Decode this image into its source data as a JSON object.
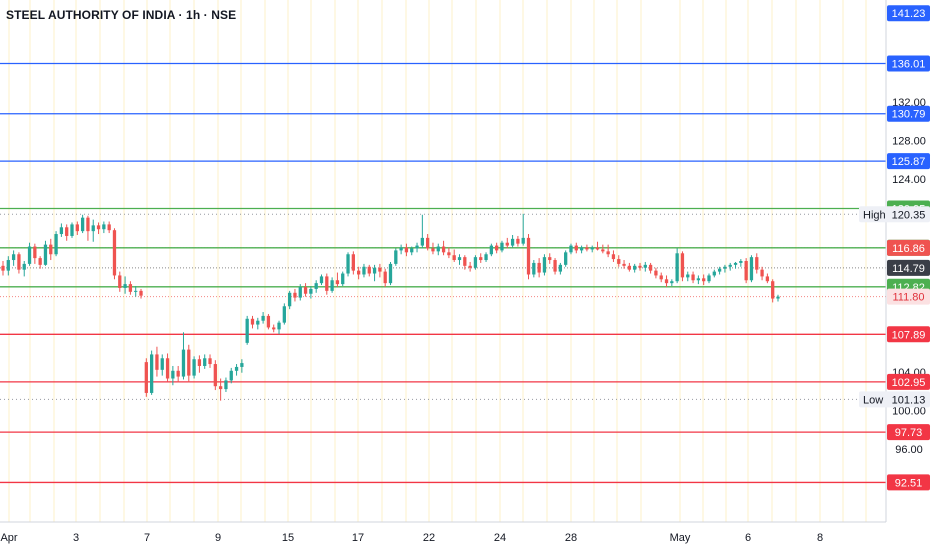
{
  "chart_data": {
    "type": "candlestick",
    "title": "STEEL AUTHORITY OF INDIA · 1h · NSE",
    "ylim": [
      88.4,
      142.6
    ],
    "x_ticks": [
      "Apr",
      "3",
      "7",
      "9",
      "15",
      "17",
      "22",
      "24",
      "28",
      "May",
      "6",
      "8"
    ],
    "y_ticks": [
      "132.00",
      "128.00",
      "124.00",
      "104.00",
      "100.00",
      "96.00"
    ],
    "colors": {
      "up": "#26a69a",
      "down": "#ef5350",
      "blue": "#2962ff",
      "green": "#4caf50",
      "red": "#f23645",
      "grid": "#fdf0c8"
    },
    "levels": [
      {
        "value": 141.23,
        "label": "141.23",
        "kind": "blue"
      },
      {
        "value": 136.01,
        "label": "136.01",
        "kind": "blue"
      },
      {
        "value": 130.79,
        "label": "130.79",
        "kind": "blue"
      },
      {
        "value": 125.87,
        "label": "125.87",
        "kind": "blue"
      },
      {
        "value": 120.95,
        "label": "120.95",
        "kind": "green"
      },
      {
        "value": 116.87,
        "label": "116.87",
        "kind": "green"
      },
      {
        "value": 112.82,
        "label": "112.82",
        "kind": "green"
      },
      {
        "value": 107.89,
        "label": "107.89",
        "kind": "red"
      },
      {
        "value": 102.95,
        "label": "102.95",
        "kind": "red"
      },
      {
        "value": 97.73,
        "label": "97.73",
        "kind": "red"
      },
      {
        "value": 92.51,
        "label": "92.51",
        "kind": "red"
      }
    ],
    "price_tags": [
      {
        "value": 116.86,
        "label": "116.86",
        "kind": "down"
      },
      {
        "value": 114.79,
        "label": "114.79",
        "kind": "dark"
      },
      {
        "value": 111.8,
        "label": "111.80",
        "kind": "down-light"
      }
    ],
    "high": {
      "label": "High",
      "value": 120.35,
      "text": "120.35"
    },
    "low": {
      "label": "Low",
      "value": 101.13,
      "text": "101.13"
    },
    "ohlc": [
      [
        115,
        115.5,
        114,
        114.5
      ],
      [
        114.5,
        116,
        114,
        115.6
      ],
      [
        115.6,
        116.6,
        115,
        116.2
      ],
      [
        116.2,
        116.4,
        114.2,
        114.6
      ],
      [
        114.6,
        115.5,
        113.9,
        115.2
      ],
      [
        115.2,
        117.4,
        115,
        117
      ],
      [
        117,
        117.3,
        115.2,
        115.8
      ],
      [
        115.8,
        116,
        114.7,
        115.1
      ],
      [
        115.1,
        117.6,
        115,
        117.2
      ],
      [
        117.2,
        117.8,
        115.6,
        116.2
      ],
      [
        116.2,
        118.6,
        116,
        118.3
      ],
      [
        118.3,
        119.4,
        118,
        119
      ],
      [
        119,
        119.3,
        117.6,
        118.1
      ],
      [
        118.1,
        119.5,
        117.9,
        119.3
      ],
      [
        119.3,
        119.6,
        118.2,
        118.6
      ],
      [
        118.6,
        120.3,
        118.4,
        120
      ],
      [
        120,
        120.2,
        117.6,
        118.6
      ],
      [
        118.6,
        119.8,
        117.5,
        119.2
      ],
      [
        119.2,
        119.5,
        118.3,
        118.8
      ],
      [
        118.8,
        119.6,
        118.4,
        119.3
      ],
      [
        119.3,
        119.6,
        118.4,
        118.7
      ],
      [
        118.7,
        118.9,
        113.6,
        114
      ],
      [
        114,
        114.4,
        112.3,
        112.7
      ],
      [
        112.7,
        113.9,
        112.1,
        113.1
      ],
      [
        113.1,
        113.4,
        112,
        112.3
      ],
      [
        112.3,
        112.9,
        111.8,
        112.4
      ],
      [
        112.4,
        112.6,
        111.6,
        111.9
      ],
      [
        105,
        105.4,
        101.4,
        101.8
      ],
      [
        101.8,
        106.2,
        101.6,
        105.8
      ],
      [
        105.8,
        106.6,
        103.5,
        104.2
      ],
      [
        104.2,
        105.8,
        103.6,
        105.4
      ],
      [
        105.4,
        105.9,
        103,
        103.3
      ],
      [
        103.3,
        104.6,
        102.6,
        104.1
      ],
      [
        104.1,
        104.6,
        102.9,
        103.5
      ],
      [
        103.5,
        108.1,
        103.2,
        106.3
      ],
      [
        106.3,
        106.8,
        102.9,
        103.6
      ],
      [
        103.6,
        105.6,
        103.3,
        105.3
      ],
      [
        105.3,
        105.7,
        103.9,
        104.6
      ],
      [
        104.6,
        105.8,
        104.3,
        105.4
      ],
      [
        105.4,
        105.8,
        104.4,
        104.8
      ],
      [
        104.8,
        105.2,
        102.1,
        102.5
      ],
      [
        102.5,
        103.3,
        101,
        102.2
      ],
      [
        102.2,
        103.4,
        101.9,
        103.1
      ],
      [
        103.1,
        104.4,
        102.8,
        104.1
      ],
      [
        104.1,
        104.8,
        103.6,
        104.5
      ],
      [
        104.5,
        105.3,
        103.9,
        104.9
      ],
      [
        107,
        109.8,
        106.8,
        109.5
      ],
      [
        109.5,
        109.8,
        108.5,
        108.9
      ],
      [
        108.9,
        109.6,
        108.4,
        109.3
      ],
      [
        109.3,
        110.2,
        109,
        109.8
      ],
      [
        109.8,
        110,
        108.4,
        108.6
      ],
      [
        108.6,
        108.9,
        108.1,
        108.4
      ],
      [
        108.4,
        109.3,
        107.9,
        109.1
      ],
      [
        109.1,
        111.1,
        108.9,
        110.8
      ],
      [
        110.8,
        112.4,
        110.5,
        112.2
      ],
      [
        112.2,
        112.6,
        111.3,
        111.7
      ],
      [
        111.7,
        113.1,
        111.4,
        112.8
      ],
      [
        112.8,
        113.2,
        111.8,
        112.1
      ],
      [
        112.1,
        112.9,
        111.6,
        112.6
      ],
      [
        112.6,
        113.5,
        112.2,
        113.2
      ],
      [
        113.2,
        114.1,
        113,
        113.9
      ],
      [
        113.9,
        114.2,
        112,
        112.4
      ],
      [
        112.4,
        113.8,
        112.2,
        113.5
      ],
      [
        113.5,
        114.3,
        112.8,
        113.1
      ],
      [
        113.1,
        114.4,
        112.9,
        114.2
      ],
      [
        114.2,
        116.4,
        113.9,
        116.2
      ],
      [
        116.2,
        116.5,
        114.1,
        114.5
      ],
      [
        114.5,
        114.9,
        113.6,
        114.1
      ],
      [
        114.1,
        115.2,
        113.8,
        114.9
      ],
      [
        114.9,
        115.1,
        113.9,
        114.2
      ],
      [
        114.2,
        115.1,
        113.4,
        114.8
      ],
      [
        114.8,
        115.2,
        113.8,
        114.4
      ],
      [
        114.4,
        114.7,
        112.8,
        113.2
      ],
      [
        113.2,
        115.4,
        113,
        115.2
      ],
      [
        115.2,
        116.8,
        115,
        116.6
      ],
      [
        116.6,
        117.2,
        116.2,
        116.9
      ],
      [
        116.9,
        117.3,
        116,
        116.4
      ],
      [
        116.4,
        117,
        116.1,
        116.8
      ],
      [
        116.8,
        117.4,
        116.4,
        117.1
      ],
      [
        117.1,
        120.3,
        116.8,
        117.9
      ],
      [
        117.9,
        118.3,
        116.6,
        116.8
      ],
      [
        116.8,
        117.4,
        116.2,
        116.5
      ],
      [
        116.5,
        117.3,
        116.1,
        117
      ],
      [
        117,
        117.6,
        116.1,
        116.4
      ],
      [
        116.4,
        116.9,
        115.8,
        116.1
      ],
      [
        116.1,
        116.7,
        115.4,
        115.6
      ],
      [
        115.6,
        116.2,
        115.1,
        115.9
      ],
      [
        115.9,
        116.1,
        114.6,
        115
      ],
      [
        115,
        115.4,
        114.4,
        114.8
      ],
      [
        114.8,
        116.1,
        114.6,
        115.9
      ],
      [
        115.9,
        116.3,
        115.3,
        115.6
      ],
      [
        115.6,
        116.4,
        115.4,
        116.2
      ],
      [
        116.2,
        117.3,
        116,
        117.1
      ],
      [
        117.1,
        117.4,
        116.3,
        116.6
      ],
      [
        116.6,
        117.6,
        116.4,
        117.4
      ],
      [
        117.4,
        117.9,
        116.8,
        117.1
      ],
      [
        117.1,
        118.2,
        116.9,
        117.8
      ],
      [
        117.8,
        118.1,
        117,
        117.3
      ],
      [
        117.3,
        120.4,
        117.1,
        117.9
      ],
      [
        117.9,
        118.3,
        113.6,
        114.1
      ],
      [
        114.1,
        115.6,
        113.8,
        115.3
      ],
      [
        115.3,
        115.8,
        113.8,
        114.3
      ],
      [
        114.3,
        116.2,
        114,
        115.9
      ],
      [
        115.9,
        116.3,
        115.2,
        115.6
      ],
      [
        115.6,
        115.8,
        114.1,
        114.4
      ],
      [
        114.4,
        115.3,
        114.1,
        115.1
      ],
      [
        115.1,
        116.6,
        114.9,
        116.4
      ],
      [
        116.4,
        117.3,
        116.2,
        117.1
      ],
      [
        117.1,
        117.4,
        116.3,
        116.6
      ],
      [
        116.6,
        117.1,
        116.3,
        116.9
      ],
      [
        116.9,
        117.2,
        116.5,
        116.7
      ],
      [
        116.7,
        117.1,
        116.4,
        116.9
      ],
      [
        116.9,
        117.5,
        116.6,
        116.7
      ],
      [
        116.7,
        117.2,
        116.3,
        116.5
      ],
      [
        116.5,
        117.2,
        115.9,
        116.2
      ],
      [
        116.2,
        116.6,
        115.4,
        115.7
      ],
      [
        115.7,
        116.1,
        114.9,
        115.2
      ],
      [
        115.2,
        115.6,
        114.7,
        115
      ],
      [
        115,
        115.3,
        114.4,
        114.6
      ],
      [
        114.6,
        115.2,
        114.3,
        115
      ],
      [
        115,
        115.3,
        114.5,
        114.8
      ],
      [
        114.8,
        115.4,
        114.4,
        115.1
      ],
      [
        115.1,
        115.3,
        114.2,
        114.5
      ],
      [
        114.5,
        114.8,
        113.7,
        114
      ],
      [
        114,
        114.3,
        113.3,
        113.6
      ],
      [
        113.6,
        114,
        112.8,
        113.2
      ],
      [
        113.2,
        113.6,
        112.9,
        113.4
      ],
      [
        113.4,
        116.8,
        113.2,
        116.3
      ],
      [
        116.3,
        116.5,
        113.4,
        113.8
      ],
      [
        113.8,
        114.4,
        113.4,
        114.1
      ],
      [
        114.1,
        114.4,
        113.2,
        113.5
      ],
      [
        113.5,
        114,
        113.1,
        113.7
      ],
      [
        113.7,
        114.1,
        113,
        113.4
      ],
      [
        113.4,
        114.2,
        113.2,
        114
      ],
      [
        114,
        114.6,
        113.8,
        114.4
      ],
      [
        114.4,
        114.9,
        114.1,
        114.7
      ],
      [
        114.7,
        115.1,
        114.3,
        114.9
      ],
      [
        114.9,
        115.3,
        114.5,
        115.1
      ],
      [
        115.1,
        115.4,
        114.7,
        115.3
      ],
      [
        115.3,
        115.7,
        114.9,
        115.5
      ],
      [
        115.5,
        115.8,
        113.2,
        113.5
      ],
      [
        113.5,
        116.1,
        113.3,
        115.9
      ],
      [
        115.9,
        116.3,
        114.2,
        114.6
      ],
      [
        114.6,
        114.9,
        113.5,
        113.9
      ],
      [
        113.9,
        114.2,
        113.2,
        113.4
      ],
      [
        113.4,
        113.6,
        111.2,
        111.6
      ],
      [
        111.6,
        112,
        111.3,
        111.8
      ]
    ]
  }
}
